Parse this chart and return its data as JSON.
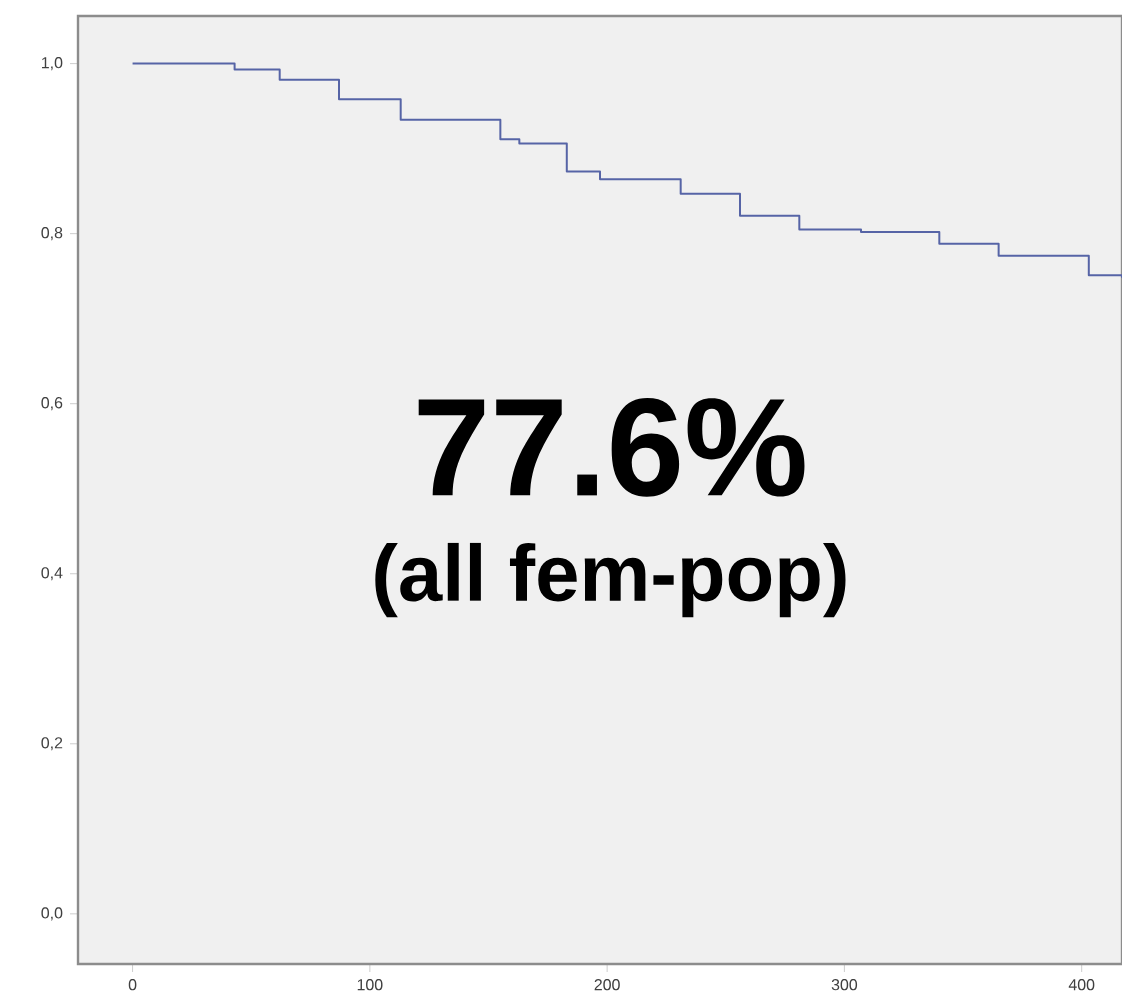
{
  "chart_data": {
    "type": "step",
    "x": [
      0,
      43,
      62,
      87,
      113,
      155,
      163,
      183,
      197,
      205,
      231,
      256,
      281,
      307,
      340,
      365,
      403,
      417
    ],
    "series": [
      {
        "color": "#5664a6",
        "values": [
          1.0,
          0.993,
          0.981,
          0.958,
          0.934,
          0.911,
          0.906,
          0.873,
          0.864,
          0.864,
          0.847,
          0.821,
          0.805,
          0.802,
          0.788,
          0.774,
          0.751,
          0.748
        ]
      }
    ],
    "xlim": [
      -23,
      417
    ],
    "ylim": [
      -0.059,
      1.056
    ],
    "xticks": [
      0,
      100,
      200,
      300,
      400
    ],
    "yticks": [
      {
        "value": 0,
        "label": "0,0"
      },
      {
        "value": 0.2,
        "label": "0,2"
      },
      {
        "value": 0.4,
        "label": "0,4"
      },
      {
        "value": 0.6,
        "label": "0,6"
      },
      {
        "value": 0.8,
        "label": "0,8"
      },
      {
        "value": 1.0,
        "label": "1,0"
      }
    ],
    "grid": false,
    "marker": "none",
    "line_style": "solid",
    "annotations": [
      "**77.6%**",
      "**(all fem-pop)**"
    ]
  }
}
